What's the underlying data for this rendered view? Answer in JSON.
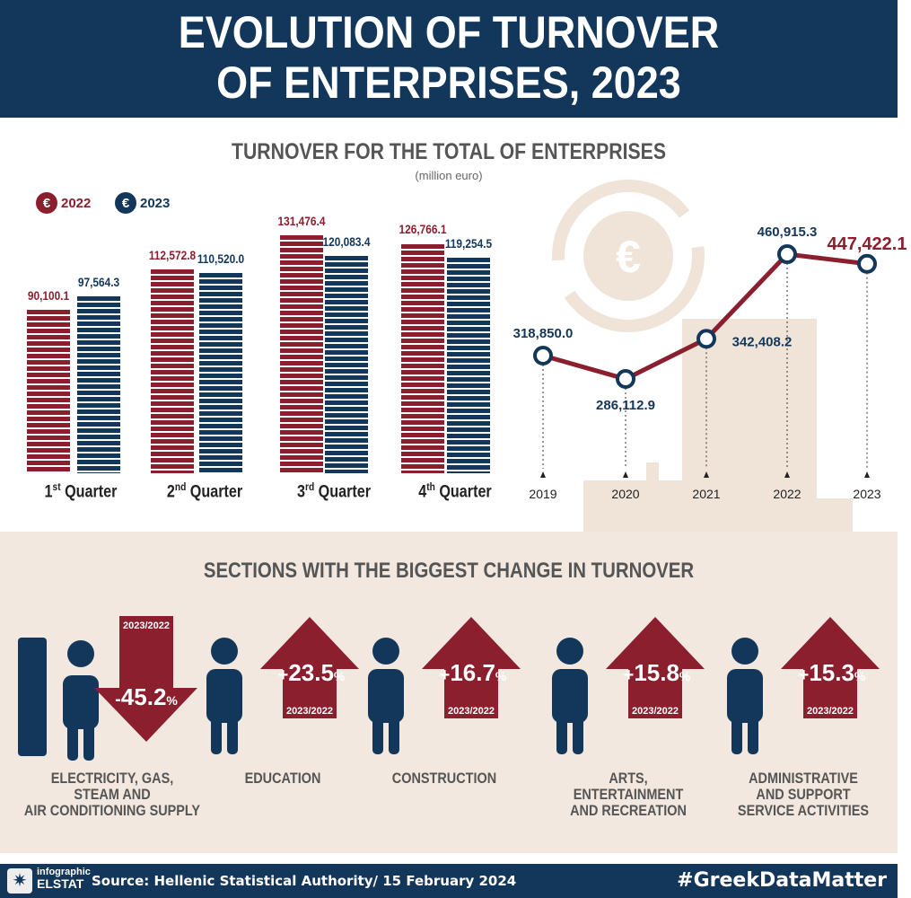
{
  "header": {
    "title_line1": "EVOLUTION OF TURNOVER",
    "title_line2": "OF ENTERPRISES, 2023"
  },
  "colors": {
    "navy": "#13375a",
    "red": "#8b1f2e",
    "beige": "#f2e8df"
  },
  "chart_data": [
    {
      "type": "bar",
      "title": "TURNOVER FOR THE TOTAL OF ENTERPRISES",
      "subtitle": "(million euro)",
      "categories": [
        "1st Quarter",
        "2nd Quarter",
        "3rd Quarter",
        "4th Quarter"
      ],
      "category_parts": [
        [
          "1",
          "st",
          " Quarter"
        ],
        [
          "2",
          "nd",
          " Quarter"
        ],
        [
          "3",
          "rd",
          " Quarter"
        ],
        [
          "4",
          "th",
          " Quarter"
        ]
      ],
      "legend": "top-left",
      "currency_icon": "euro-icon",
      "series": [
        {
          "name": "2022",
          "color": "#8b1f2e",
          "values": [
            90100.1,
            112572.8,
            131476.4,
            126766.1
          ],
          "labels": [
            "90,100.1",
            "112,572.8",
            "131,476.4",
            "126,766.1"
          ]
        },
        {
          "name": "2023",
          "color": "#13375a",
          "values": [
            97564.3,
            110520.0,
            120083.4,
            119254.5
          ],
          "labels": [
            "97,564.3",
            "110,520.0",
            "120,083.4",
            "119,254.5"
          ]
        }
      ]
    },
    {
      "type": "line",
      "x": [
        "2019",
        "2020",
        "2021",
        "2022",
        "2023"
      ],
      "values": [
        318850.0,
        286112.9,
        342408.2,
        460915.3,
        447422.1
      ],
      "labels": [
        "318,850.0",
        "286,112.9",
        "342,408.2",
        "460,915.3",
        "447,422.1"
      ],
      "color": "#8b1f2e"
    }
  ],
  "sections": {
    "title": "SECTIONS WITH THE BIGGEST CHANGE IN TURNOVER",
    "items": [
      {
        "name": "ELECTRICITY, GAS,\nSTEAM AND\nAIR CONDITIONING SUPPLY",
        "sign": "-",
        "value": "45.2",
        "pct": "%",
        "period": "2023/2022",
        "direction": "down",
        "icon": "gas-worker-icon"
      },
      {
        "name": "EDUCATION",
        "sign": "+",
        "value": "23.5",
        "pct": "%",
        "period": "2023/2022",
        "direction": "up",
        "icon": "teacher-icon"
      },
      {
        "name": "CONSTRUCTION",
        "sign": "+",
        "value": "16.7",
        "pct": "%",
        "period": "2023/2022",
        "direction": "up",
        "icon": "construction-worker-icon"
      },
      {
        "name": "ARTS,\nENTERTAINMENT\nAND RECREATION",
        "sign": "+",
        "value": "15.8",
        "pct": "%",
        "period": "2023/2022",
        "direction": "up",
        "icon": "cinema-icon"
      },
      {
        "name": "ADMINISTRATIVE\nAND SUPPORT\nSERVICE ACTIVITIES",
        "sign": "+",
        "value": "15.3",
        "pct": "%",
        "period": "2023/2022",
        "direction": "up",
        "icon": "office-worker-icon"
      }
    ]
  },
  "footer": {
    "logo_top": "infographic",
    "logo_bottom": "ELSTAT",
    "source": "Source: Hellenic Statistical Authority/ 15 February 2024",
    "hashtag": "#GreekDataMatter"
  }
}
